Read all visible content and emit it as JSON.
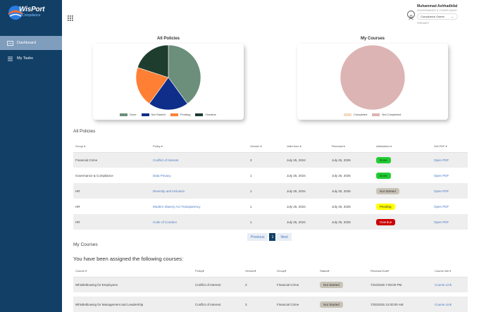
{
  "brand": {
    "name": "WisPort",
    "sub": "Compliance"
  },
  "sidebar": {
    "items": [
      {
        "label": "Dashboard",
        "active": true
      },
      {
        "label": "My Tasks",
        "active": false
      }
    ]
  },
  "user": {
    "name": "Muhammad Ashhadbilal",
    "org": "GOVERNANCE & COMPLIANCE",
    "role": "Compliance Owner",
    "sub": "PRIMARY"
  },
  "charts": [
    {
      "title": "All Policies"
    },
    {
      "title": "My Courses"
    }
  ],
  "chart_data": [
    {
      "type": "pie",
      "title": "All Policies",
      "labels": [
        "Done",
        "Not Started",
        "Pending",
        "Overdue"
      ],
      "values": [
        2,
        1,
        1,
        1
      ],
      "colors": [
        "#6b8f7a",
        "#0f2e8a",
        "#ff8034",
        "#1e3d2e"
      ],
      "legend": "bottom"
    },
    {
      "type": "pie",
      "title": "My Courses",
      "labels": [
        "Completed",
        "Not Completed"
      ],
      "values": [
        0,
        2
      ],
      "colors": [
        "#f3dcc4",
        "#ddb4b4"
      ],
      "legend": "bottom"
    }
  ],
  "policies": {
    "title": "All Policies",
    "columns": [
      "Group ▾",
      "Policy ▾",
      "Version ▾",
      "Valid from ▾",
      "Renewal ▾",
      "Attestation ▾",
      "Get PDF ▾"
    ],
    "rows": [
      {
        "group": "Financial Crime",
        "policy": "Conflict of Interest",
        "version": "3",
        "valid_from": "July 25, 2024",
        "renewal": "July 25, 2025",
        "attestation": "Done",
        "pdf": "Open PDF"
      },
      {
        "group": "Governance & Compliance",
        "policy": "Data Privacy",
        "version": "1",
        "valid_from": "July 25, 2024",
        "renewal": "July 25, 2025",
        "attestation": "Done",
        "pdf": "Open PDF"
      },
      {
        "group": "HR",
        "policy": "Diversity and Inclusion",
        "version": "1",
        "valid_from": "July 25, 2024",
        "renewal": "July 25, 2025",
        "attestation": "Not Started",
        "pdf": "Open PDF"
      },
      {
        "group": "HR",
        "policy": "Modern Slavery Act Transparency",
        "version": "1",
        "valid_from": "July 25, 2024",
        "renewal": "July 25, 2025",
        "attestation": "Pending",
        "pdf": "Open PDF"
      },
      {
        "group": "HR",
        "policy": "Code of Conduct",
        "version": "1",
        "valid_from": "July 25, 2024",
        "renewal": "July 25, 2025",
        "attestation": "Overdue",
        "pdf": "Open PDF"
      }
    ]
  },
  "badge_colors": {
    "Done": {
      "bg": "#22cc33",
      "fg": "#0b3d10"
    },
    "Not Started": {
      "bg": "#c9c4b8",
      "fg": "#333333"
    },
    "Pending": {
      "bg": "#ffff00",
      "fg": "#333333"
    },
    "Overdue": {
      "bg": "#cc0000",
      "fg": "#ffffff"
    }
  },
  "pager": {
    "prev": "Previous",
    "current": "1",
    "next": "Next"
  },
  "courses": {
    "title": "My Courses",
    "assigned": "You have been assigned the following courses:",
    "columns": [
      "Course ▾",
      "Policy▾",
      "Version▾",
      "Group▾",
      "Status▾",
      "Renewal Due▾",
      "Course link ▾"
    ],
    "rows": [
      {
        "course": "Whistleblowing for Employees",
        "policy": "Conflict of Interest",
        "version": "3",
        "group": "Financial Crime",
        "status": "Not Started",
        "due": "7/24/2025 7:00:00 PM",
        "link": "Course Link"
      },
      {
        "course": "Whistleblowing for Management and Leadership",
        "policy": "Conflict of Interest",
        "version": "3",
        "group": "Financial Crime",
        "status": "Not Started",
        "due": "7/25/2025 12:00:00 AM",
        "link": "Course Link"
      }
    ]
  }
}
